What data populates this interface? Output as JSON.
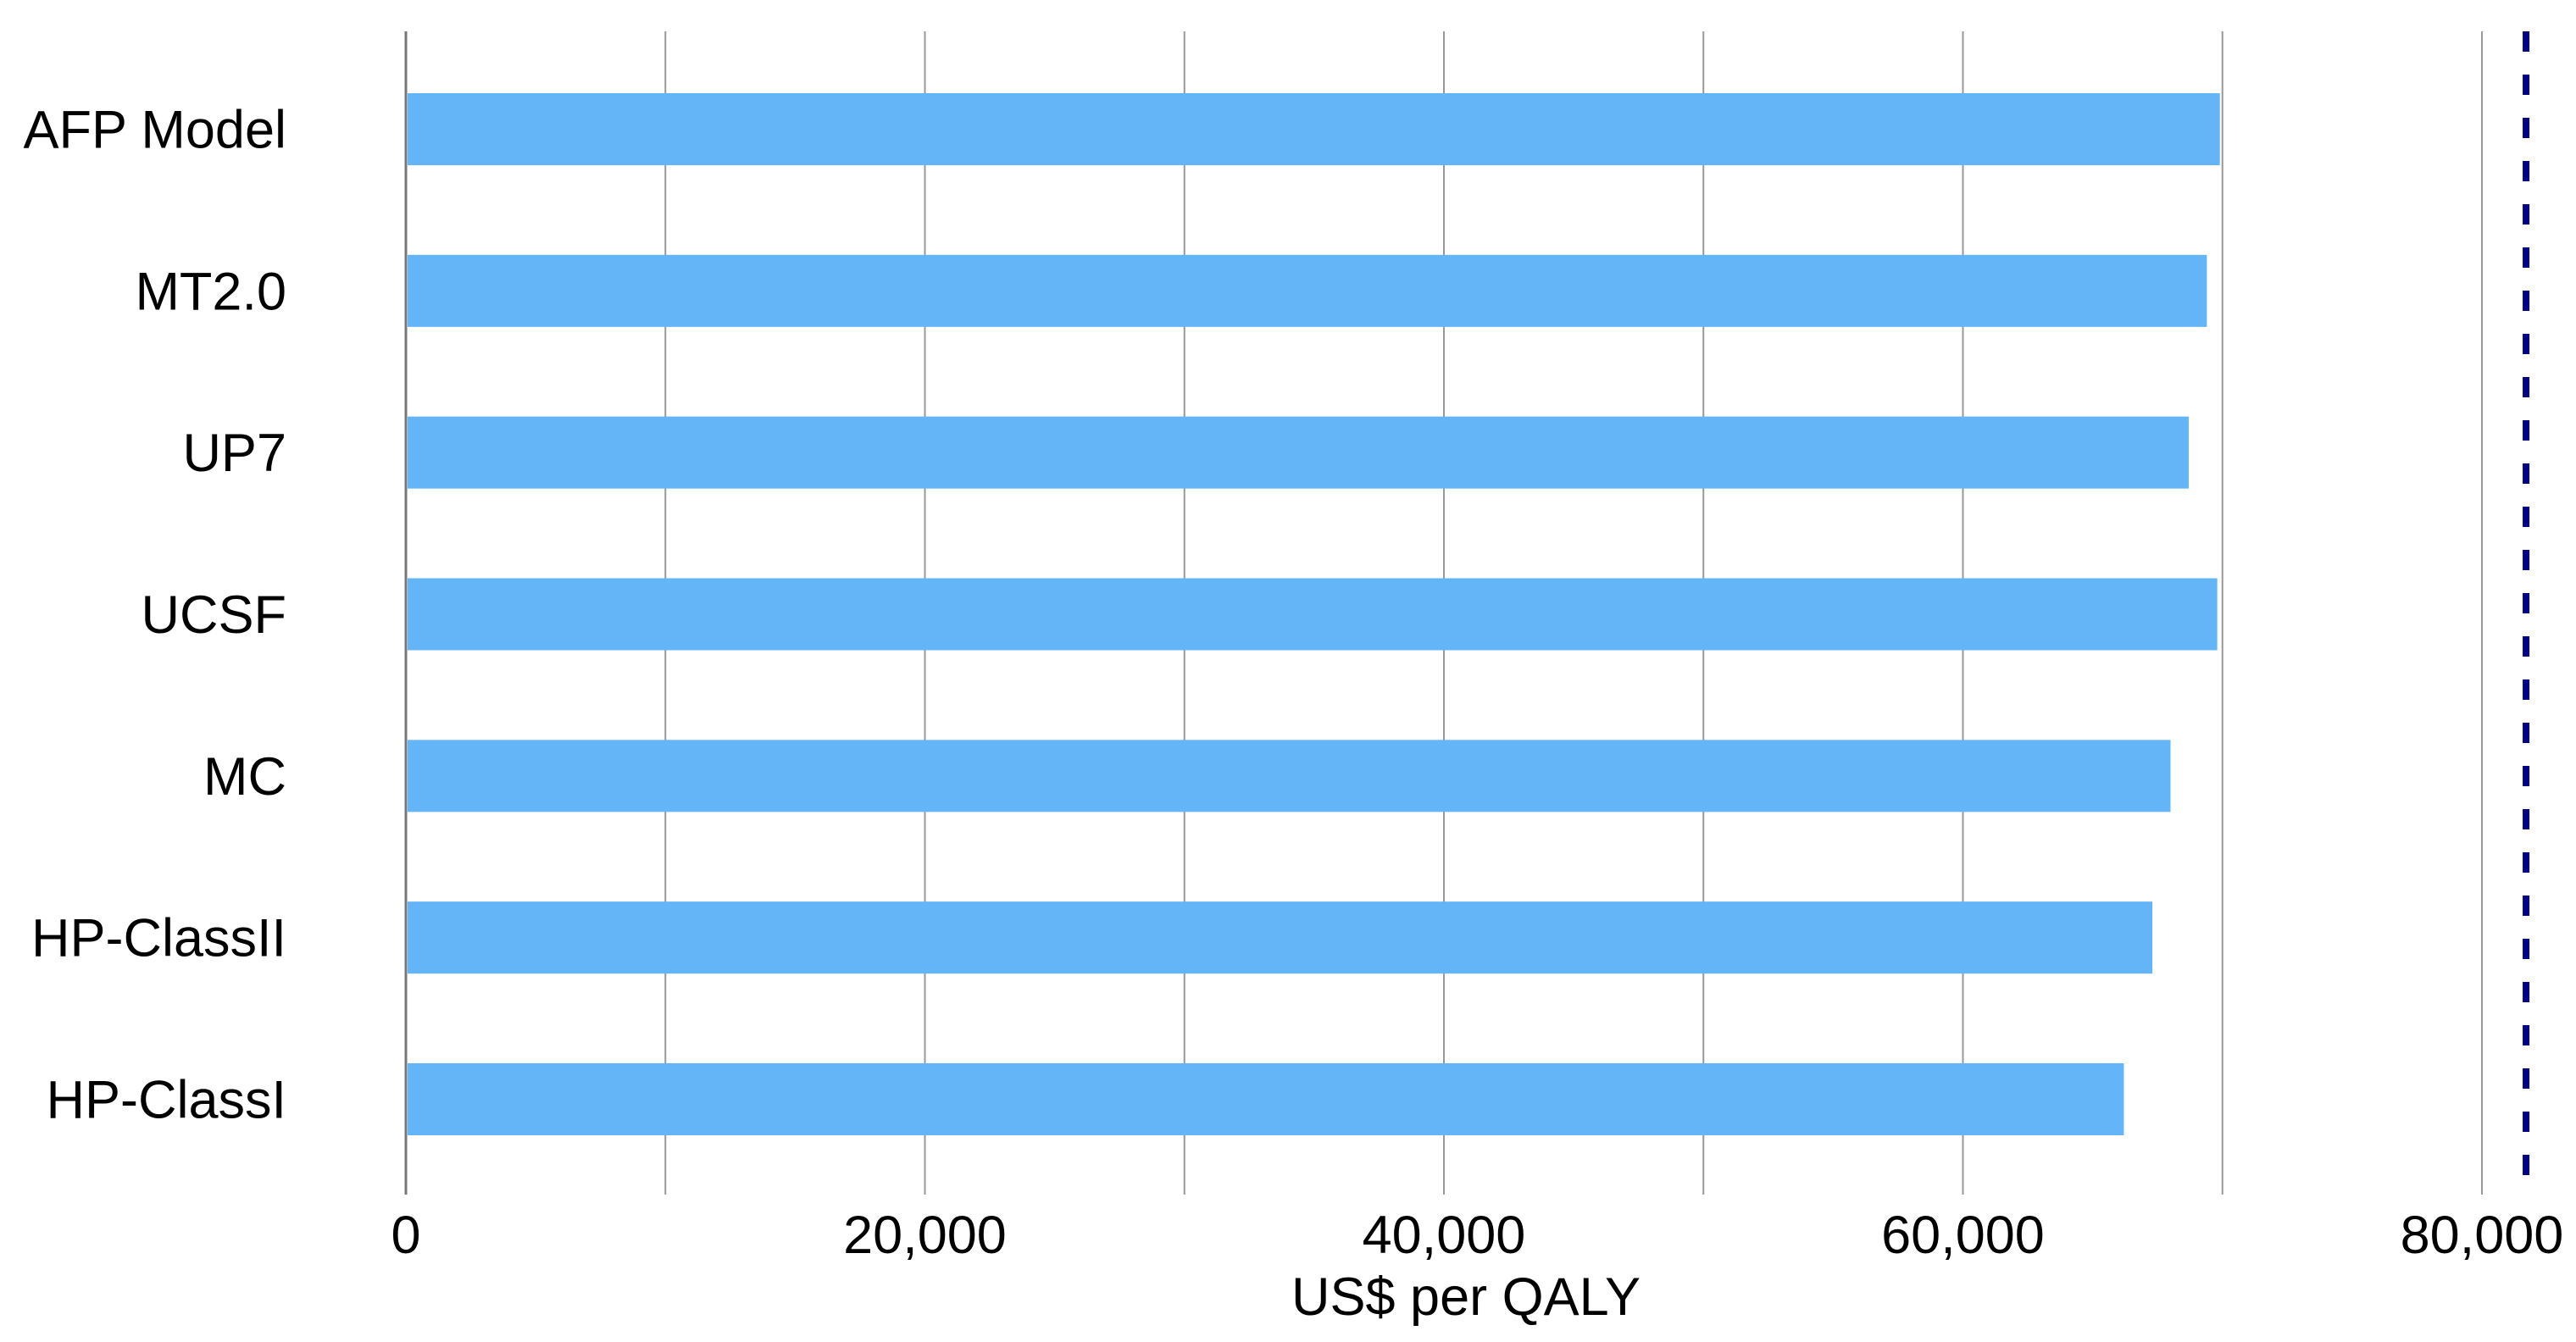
{
  "chart_data": {
    "type": "bar",
    "orientation": "horizontal",
    "title": "",
    "xlabel": "US$ per QALY",
    "ylabel": "",
    "categories": [
      "AFP Model",
      "MT2.0",
      "UP7",
      "UCSF",
      "MC",
      "HP-ClassII",
      "HP-ClassI"
    ],
    "values": [
      69900,
      69400,
      68700,
      69800,
      68000,
      67300,
      66200
    ],
    "xlim": [
      0,
      83600
    ],
    "x_ticks": [
      {
        "value": 0,
        "label": "0"
      },
      {
        "value": 20000,
        "label": "20,000"
      },
      {
        "value": 40000,
        "label": "40,000"
      },
      {
        "value": 60000,
        "label": "60,000"
      },
      {
        "value": 80000,
        "label": "80,000"
      }
    ],
    "gridline_interval": 10000,
    "grid": true,
    "legend_position": "none",
    "reference_line": {
      "value": 81700,
      "style": "dashed",
      "color": "#00008B"
    },
    "colors": {
      "bar": "#64B5F8",
      "gridline": "#989898",
      "zero_axis": "#787878",
      "text": "#000000",
      "background": "#ffffff"
    }
  }
}
